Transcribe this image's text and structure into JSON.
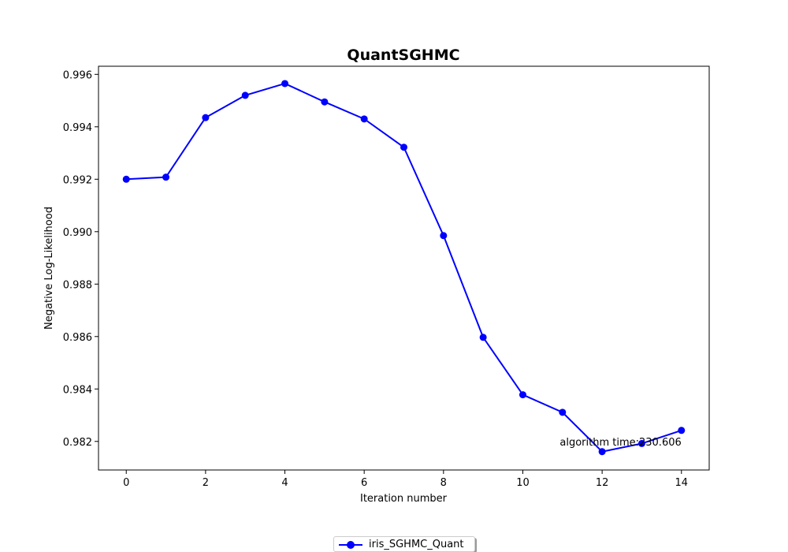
{
  "chart_data": {
    "type": "line",
    "title": "QuantSGHMC",
    "xlabel": "Iteration number",
    "ylabel": "Negative Log-Likelihood",
    "xlim": [
      -0.7,
      14.7
    ],
    "ylim": [
      0.98091,
      0.99631
    ],
    "x_ticks": [
      0,
      2,
      4,
      6,
      8,
      10,
      12,
      14
    ],
    "y_ticks": [
      0.982,
      0.984,
      0.986,
      0.988,
      0.99,
      0.992,
      0.994,
      0.996
    ],
    "x_tick_labels": [
      "0",
      "2",
      "4",
      "6",
      "8",
      "10",
      "12",
      "14"
    ],
    "y_tick_labels": [
      "0.982",
      "0.984",
      "0.986",
      "0.988",
      "0.990",
      "0.992",
      "0.994",
      "0.996"
    ],
    "grid": false,
    "legend_position": "bottom-center",
    "series": [
      {
        "name": "iris_SGHMC_Quant",
        "color": "#0000ff",
        "marker": "circle",
        "x": [
          0,
          1,
          2,
          3,
          4,
          5,
          6,
          7,
          8,
          9,
          10,
          11,
          12,
          13,
          14
        ],
        "y": [
          0.992,
          0.99208,
          0.99435,
          0.9952,
          0.99565,
          0.99495,
          0.9943,
          0.99322,
          0.98985,
          0.98597,
          0.98378,
          0.98311,
          0.98161,
          0.98192,
          0.98242
        ]
      }
    ],
    "annotations": [
      {
        "text": "algorithm time:230.606",
        "x": 14,
        "y": 0.982
      }
    ]
  }
}
